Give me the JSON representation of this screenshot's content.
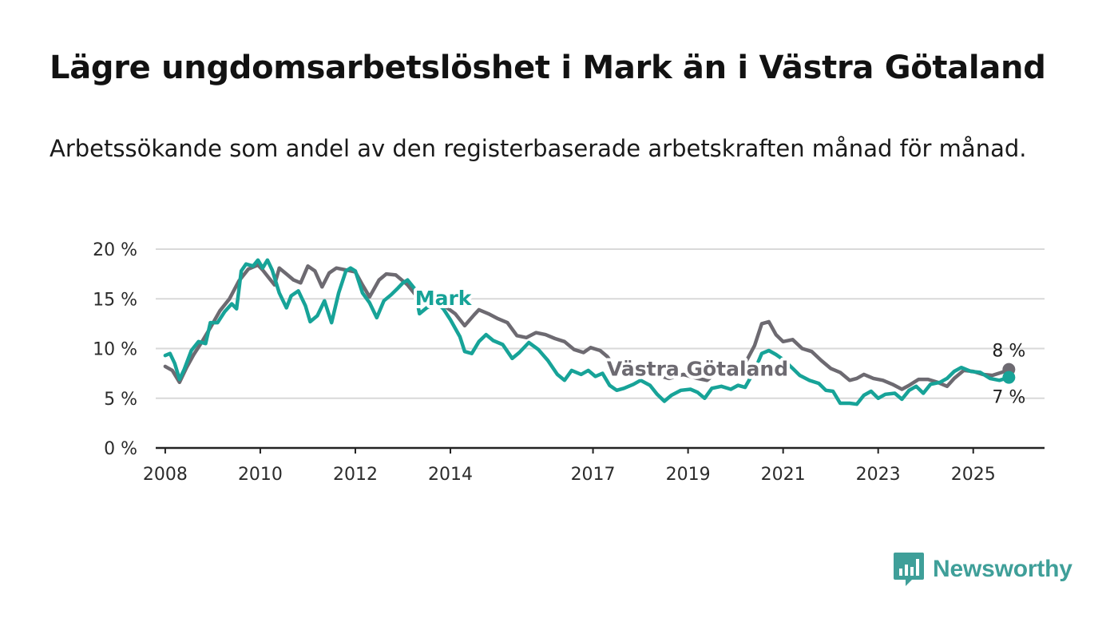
{
  "title": "Lägre ungdomsarbetslöshet i Mark än i Västra Götaland",
  "subtitle": "Arbetssökande som andel av den registerbaserade arbetskraften månad för månad.",
  "brand": "Newsworthy",
  "colors": {
    "mark": "#17a398",
    "vastra": "#6d6a71",
    "grid": "#d9d9d9",
    "axis": "#222222",
    "brand": "#3f9f99"
  },
  "chart_data": {
    "type": "line",
    "title": "Lägre ungdomsarbetslöshet i Mark än i Västra Götaland",
    "subtitle": "Arbetssökande som andel av den registerbaserade arbetskraften månad för månad.",
    "xlabel": "",
    "ylabel": "",
    "ylim": [
      0,
      20
    ],
    "y_ticks": [
      0,
      5,
      10,
      15,
      20
    ],
    "y_tick_labels": [
      "0 %",
      "5 %",
      "10 %",
      "15 %",
      "20 %"
    ],
    "x_ticks": [
      2008,
      2010,
      2012,
      2014,
      2017,
      2019,
      2021,
      2023,
      2025
    ],
    "x_tick_labels": [
      "2008",
      "2010",
      "2012",
      "2014",
      "2017",
      "2019",
      "2021",
      "2023",
      "2025"
    ],
    "xlim": [
      2007.8,
      2026.5
    ],
    "grid": "horizontal",
    "legend": "direct labels on lines",
    "end_labels": [
      "8 %",
      "7 %"
    ],
    "series": [
      {
        "name": "Västra Götaland",
        "color": "#6d6a71",
        "points": [
          [
            2008.0,
            8.2
          ],
          [
            2008.15,
            7.8
          ],
          [
            2008.3,
            6.6
          ],
          [
            2008.45,
            8.1
          ],
          [
            2008.6,
            9.4
          ],
          [
            2008.75,
            10.5
          ],
          [
            2008.95,
            12.1
          ],
          [
            2009.15,
            13.8
          ],
          [
            2009.35,
            15.0
          ],
          [
            2009.55,
            16.8
          ],
          [
            2009.75,
            18.0
          ],
          [
            2009.95,
            18.4
          ],
          [
            2010.05,
            17.9
          ],
          [
            2010.2,
            17.0
          ],
          [
            2010.3,
            16.4
          ],
          [
            2010.4,
            18.1
          ],
          [
            2010.55,
            17.5
          ],
          [
            2010.7,
            16.9
          ],
          [
            2010.85,
            16.6
          ],
          [
            2011.0,
            18.3
          ],
          [
            2011.15,
            17.8
          ],
          [
            2011.3,
            16.2
          ],
          [
            2011.45,
            17.6
          ],
          [
            2011.6,
            18.1
          ],
          [
            2011.8,
            17.9
          ],
          [
            2012.0,
            17.7
          ],
          [
            2012.15,
            16.4
          ],
          [
            2012.3,
            15.2
          ],
          [
            2012.5,
            16.9
          ],
          [
            2012.65,
            17.5
          ],
          [
            2012.85,
            17.4
          ],
          [
            2013.0,
            16.8
          ],
          [
            2013.1,
            16.4
          ],
          [
            2013.3,
            15.2
          ],
          [
            2013.5,
            14.6
          ],
          [
            2013.7,
            14.8
          ],
          [
            2013.9,
            14.2
          ],
          [
            2014.1,
            13.5
          ],
          [
            2014.3,
            12.3
          ],
          [
            2014.5,
            13.4
          ],
          [
            2014.6,
            13.9
          ],
          [
            2014.8,
            13.5
          ],
          [
            2015.0,
            13.0
          ],
          [
            2015.2,
            12.6
          ],
          [
            2015.4,
            11.3
          ],
          [
            2015.6,
            11.1
          ],
          [
            2015.8,
            11.6
          ],
          [
            2016.0,
            11.4
          ],
          [
            2016.2,
            11.0
          ],
          [
            2016.4,
            10.7
          ],
          [
            2016.6,
            9.9
          ],
          [
            2016.8,
            9.6
          ],
          [
            2016.95,
            10.1
          ],
          [
            2017.15,
            9.8
          ],
          [
            2017.3,
            9.2
          ],
          [
            2017.45,
            8.2
          ],
          [
            2017.6,
            8.3
          ],
          [
            2017.75,
            8.0
          ],
          [
            2018.0,
            8.0
          ],
          [
            2018.3,
            7.4
          ],
          [
            2018.6,
            7.0
          ],
          [
            2018.9,
            7.4
          ],
          [
            2019.2,
            7.0
          ],
          [
            2019.4,
            6.8
          ],
          [
            2019.6,
            7.6
          ],
          [
            2019.9,
            8.0
          ],
          [
            2020.2,
            8.5
          ],
          [
            2020.4,
            10.3
          ],
          [
            2020.55,
            12.5
          ],
          [
            2020.7,
            12.7
          ],
          [
            2020.85,
            11.4
          ],
          [
            2021.0,
            10.7
          ],
          [
            2021.2,
            10.9
          ],
          [
            2021.4,
            10.0
          ],
          [
            2021.6,
            9.7
          ],
          [
            2021.8,
            8.8
          ],
          [
            2022.0,
            8.0
          ],
          [
            2022.2,
            7.6
          ],
          [
            2022.4,
            6.8
          ],
          [
            2022.55,
            7.0
          ],
          [
            2022.7,
            7.4
          ],
          [
            2022.9,
            7.0
          ],
          [
            2023.1,
            6.8
          ],
          [
            2023.3,
            6.4
          ],
          [
            2023.5,
            5.9
          ],
          [
            2023.65,
            6.3
          ],
          [
            2023.85,
            6.9
          ],
          [
            2024.05,
            6.9
          ],
          [
            2024.25,
            6.6
          ],
          [
            2024.45,
            6.2
          ],
          [
            2024.6,
            7.0
          ],
          [
            2024.8,
            7.8
          ],
          [
            2025.0,
            7.7
          ],
          [
            2025.2,
            7.4
          ],
          [
            2025.4,
            7.3
          ],
          [
            2025.6,
            7.6
          ],
          [
            2025.75,
            7.9
          ]
        ]
      },
      {
        "name": "Mark",
        "color": "#17a398",
        "points": [
          [
            2008.0,
            9.3
          ],
          [
            2008.1,
            9.5
          ],
          [
            2008.2,
            8.5
          ],
          [
            2008.3,
            6.9
          ],
          [
            2008.4,
            7.9
          ],
          [
            2008.55,
            9.8
          ],
          [
            2008.7,
            10.7
          ],
          [
            2008.85,
            10.5
          ],
          [
            2008.95,
            12.6
          ],
          [
            2009.1,
            12.6
          ],
          [
            2009.25,
            13.7
          ],
          [
            2009.4,
            14.5
          ],
          [
            2009.5,
            14.0
          ],
          [
            2009.6,
            17.8
          ],
          [
            2009.7,
            18.5
          ],
          [
            2009.85,
            18.3
          ],
          [
            2009.95,
            18.9
          ],
          [
            2010.05,
            18.1
          ],
          [
            2010.15,
            18.9
          ],
          [
            2010.25,
            17.9
          ],
          [
            2010.4,
            15.6
          ],
          [
            2010.55,
            14.1
          ],
          [
            2010.65,
            15.3
          ],
          [
            2010.8,
            15.8
          ],
          [
            2010.95,
            14.3
          ],
          [
            2011.05,
            12.7
          ],
          [
            2011.2,
            13.3
          ],
          [
            2011.35,
            14.8
          ],
          [
            2011.5,
            12.6
          ],
          [
            2011.65,
            15.6
          ],
          [
            2011.8,
            17.8
          ],
          [
            2011.9,
            18.1
          ],
          [
            2012.0,
            17.8
          ],
          [
            2012.15,
            15.6
          ],
          [
            2012.3,
            14.6
          ],
          [
            2012.45,
            13.1
          ],
          [
            2012.6,
            14.8
          ],
          [
            2012.75,
            15.4
          ],
          [
            2012.9,
            16.1
          ],
          [
            2013.0,
            16.6
          ],
          [
            2013.1,
            16.9
          ],
          [
            2013.25,
            16.0
          ],
          [
            2013.35,
            13.5
          ],
          [
            2013.5,
            14.1
          ],
          [
            2013.7,
            14.6
          ],
          [
            2013.85,
            14.0
          ],
          [
            2014.0,
            12.9
          ],
          [
            2014.2,
            11.2
          ],
          [
            2014.3,
            9.7
          ],
          [
            2014.45,
            9.5
          ],
          [
            2014.6,
            10.7
          ],
          [
            2014.75,
            11.4
          ],
          [
            2014.9,
            10.8
          ],
          [
            2015.1,
            10.4
          ],
          [
            2015.3,
            9.0
          ],
          [
            2015.45,
            9.6
          ],
          [
            2015.65,
            10.6
          ],
          [
            2015.85,
            9.9
          ],
          [
            2016.05,
            8.8
          ],
          [
            2016.25,
            7.4
          ],
          [
            2016.4,
            6.8
          ],
          [
            2016.55,
            7.8
          ],
          [
            2016.75,
            7.4
          ],
          [
            2016.9,
            7.8
          ],
          [
            2017.05,
            7.2
          ],
          [
            2017.2,
            7.5
          ],
          [
            2017.35,
            6.3
          ],
          [
            2017.5,
            5.8
          ],
          [
            2017.65,
            6.0
          ],
          [
            2017.85,
            6.4
          ],
          [
            2018.0,
            6.8
          ],
          [
            2018.2,
            6.3
          ],
          [
            2018.35,
            5.4
          ],
          [
            2018.5,
            4.7
          ],
          [
            2018.65,
            5.3
          ],
          [
            2018.85,
            5.8
          ],
          [
            2019.05,
            5.9
          ],
          [
            2019.2,
            5.6
          ],
          [
            2019.35,
            5.0
          ],
          [
            2019.5,
            6.0
          ],
          [
            2019.7,
            6.2
          ],
          [
            2019.9,
            5.9
          ],
          [
            2020.05,
            6.3
          ],
          [
            2020.2,
            6.1
          ],
          [
            2020.4,
            7.8
          ],
          [
            2020.55,
            9.5
          ],
          [
            2020.7,
            9.8
          ],
          [
            2020.85,
            9.4
          ],
          [
            2021.0,
            8.9
          ],
          [
            2021.2,
            8.0
          ],
          [
            2021.35,
            7.3
          ],
          [
            2021.55,
            6.8
          ],
          [
            2021.75,
            6.5
          ],
          [
            2021.9,
            5.8
          ],
          [
            2022.05,
            5.7
          ],
          [
            2022.2,
            4.5
          ],
          [
            2022.4,
            4.5
          ],
          [
            2022.55,
            4.4
          ],
          [
            2022.7,
            5.3
          ],
          [
            2022.85,
            5.7
          ],
          [
            2023.0,
            5.0
          ],
          [
            2023.15,
            5.4
          ],
          [
            2023.35,
            5.5
          ],
          [
            2023.5,
            4.9
          ],
          [
            2023.65,
            5.8
          ],
          [
            2023.8,
            6.2
          ],
          [
            2023.95,
            5.5
          ],
          [
            2024.1,
            6.4
          ],
          [
            2024.3,
            6.6
          ],
          [
            2024.45,
            7.0
          ],
          [
            2024.6,
            7.7
          ],
          [
            2024.75,
            8.1
          ],
          [
            2024.95,
            7.7
          ],
          [
            2025.15,
            7.6
          ],
          [
            2025.35,
            7.0
          ],
          [
            2025.55,
            6.8
          ],
          [
            2025.75,
            7.1
          ]
        ]
      }
    ],
    "annotations": [
      {
        "text": "Mark",
        "series": "Mark",
        "x": 2013.85,
        "y": 15.1
      },
      {
        "text": "Västra Götaland",
        "series": "Västra Götaland",
        "x": 2019.2,
        "y": 8.0
      }
    ]
  }
}
